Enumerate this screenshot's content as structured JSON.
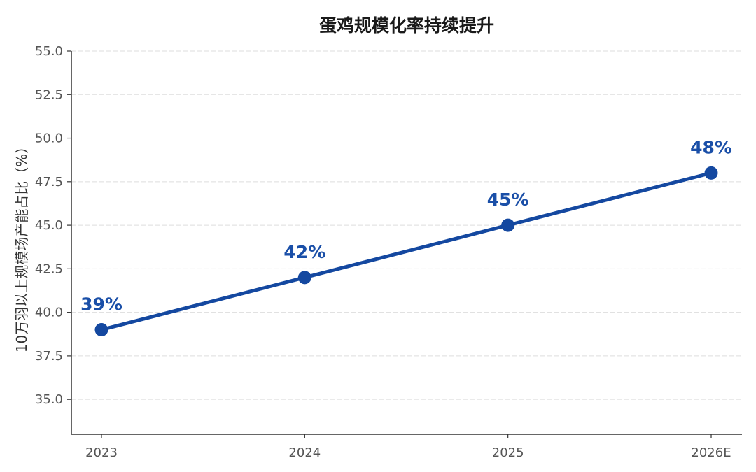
{
  "chart_data": {
    "type": "line",
    "title": "蛋鸡规模化率持续提升",
    "xlabel": "",
    "ylabel": "10万羽以上规模场产能占比（%）",
    "categories": [
      "2023",
      "2024",
      "2025",
      "2026E"
    ],
    "series": [
      {
        "values": [
          39,
          42,
          45,
          48
        ],
        "labels": [
          "39%",
          "42%",
          "45%",
          "48%"
        ]
      }
    ],
    "ylim": [
      33.0,
      55.0
    ],
    "yticks": [
      35.0,
      37.5,
      40.0,
      42.5,
      45.0,
      47.5,
      50.0,
      52.5,
      55.0
    ],
    "ytick_labels": [
      "35.0",
      "37.5",
      "40.0",
      "42.5",
      "45.0",
      "47.5",
      "50.0",
      "52.5",
      "55.0"
    ],
    "grid": true,
    "legend": "none"
  },
  "colors": {
    "line": "#1448a0",
    "label": "#1a4fa8",
    "grid": "#dddddd",
    "axis": "#333333"
  }
}
